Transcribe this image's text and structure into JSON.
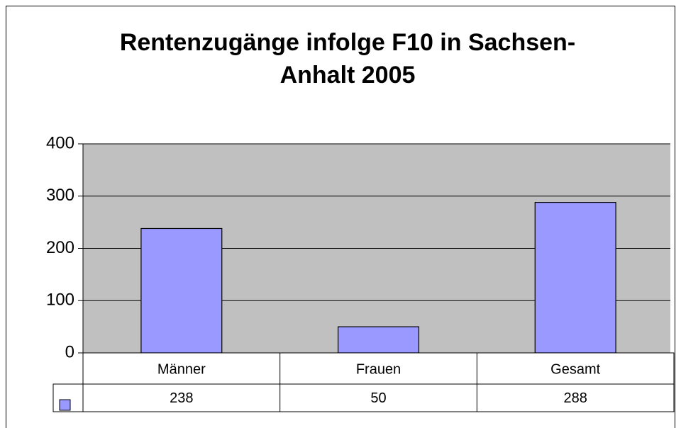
{
  "chart_data": {
    "type": "bar",
    "title": [
      "Rentenzugänge infolge F10 in Sachsen-",
      "Anhalt 2005"
    ],
    "categories": [
      "Männer",
      "Frauen",
      "Gesamt"
    ],
    "values": [
      238,
      50,
      288
    ],
    "color": "#9999ff",
    "ylim": [
      0,
      400
    ],
    "yticks": [
      0,
      100,
      200,
      300,
      400
    ],
    "grid": true,
    "data_table": true
  }
}
